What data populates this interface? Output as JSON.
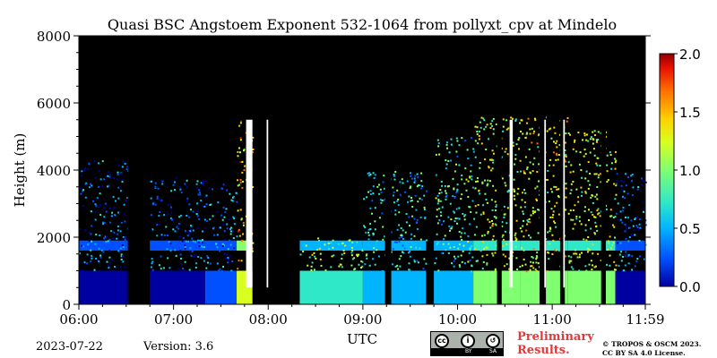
{
  "chart_data": {
    "type": "heatmap",
    "title": "Quasi BSC Angstoem Exponent 532-1064 from pollyxt_cpv at Mindelo",
    "xlabel": "UTC",
    "ylabel": "Height (m)",
    "x_range": [
      "06:00",
      "11:59"
    ],
    "x_ticks": [
      "06:00",
      "07:00",
      "08:00",
      "09:00",
      "10:00",
      "11:00",
      "11:59"
    ],
    "y_range": [
      0,
      8000
    ],
    "y_ticks": [
      0,
      2000,
      4000,
      6000,
      8000
    ],
    "colorbar": {
      "range": [
        0.0,
        2.0
      ],
      "ticks": [
        "0.0",
        "0.5",
        "1.0",
        "1.5",
        "2.0"
      ],
      "colormap": "jet",
      "colors": [
        "#0000a0",
        "#0050ff",
        "#00b4ff",
        "#2ee8c8",
        "#80ff70",
        "#d8ff20",
        "#ffd000",
        "#ff7000",
        "#e81000",
        "#900000"
      ]
    },
    "background_color": "#000000",
    "profiles": [
      {
        "start": "06:00",
        "end": "06:30",
        "top_m": 4300,
        "value": 0.25
      },
      {
        "start": "06:30",
        "end": "06:32",
        "top_m": 4300,
        "value": 0.25
      },
      {
        "start": "06:45",
        "end": "07:20",
        "top_m": 3800,
        "value": 0.3
      },
      {
        "start": "07:20",
        "end": "07:40",
        "top_m": 3600,
        "value": 0.35
      },
      {
        "start": "07:40",
        "end": "07:50",
        "top_m": 5500,
        "value": 1.3
      },
      {
        "start": "08:20",
        "end": "09:00",
        "top_m": 2000,
        "value": 0.9
      },
      {
        "start": "09:00",
        "end": "09:40",
        "top_m": 4000,
        "value": 0.6
      },
      {
        "start": "09:45",
        "end": "10:10",
        "top_m": 5000,
        "value": 0.7
      },
      {
        "start": "10:10",
        "end": "10:40",
        "top_m": 5600,
        "value": 1.0
      },
      {
        "start": "10:40",
        "end": "11:10",
        "top_m": 5600,
        "value": 1.1
      },
      {
        "start": "11:10",
        "end": "11:40",
        "top_m": 5200,
        "value": 1.0
      },
      {
        "start": "11:40",
        "end": "11:59",
        "top_m": 4000,
        "value": 0.3
      }
    ],
    "no_signal_columns": [
      {
        "start": "06:31",
        "end": "06:42"
      },
      {
        "start": "07:52",
        "end": "07:58"
      },
      {
        "start": "08:01",
        "end": "08:07"
      },
      {
        "start": "09:14",
        "end": "09:18"
      },
      {
        "start": "10:25",
        "end": "10:28"
      },
      {
        "start": "10:52",
        "end": "10:56"
      },
      {
        "start": "11:05",
        "end": "11:08"
      },
      {
        "start": "11:31",
        "end": "11:34"
      }
    ],
    "saturated_columns": [
      {
        "start": "07:46",
        "end": "07:50"
      },
      {
        "start": "07:59",
        "end": "08:00"
      },
      {
        "start": "10:33",
        "end": "10:35"
      },
      {
        "start": "10:55",
        "end": "10:56"
      },
      {
        "start": "11:07",
        "end": "11:08"
      }
    ]
  },
  "footer": {
    "date": "2023-07-22",
    "version": "Version: 3.6",
    "preliminary_line1": "Preliminary",
    "preliminary_line2": "Results.",
    "copyright_line1": "© TROPOS & OSCM 2023.",
    "copyright_line2": "CC BY SA 4.0 License.",
    "license_badge": {
      "cc": "cc",
      "by": "BY",
      "sa": "SA",
      "icon": "creative-commons-by-sa-icon"
    }
  }
}
